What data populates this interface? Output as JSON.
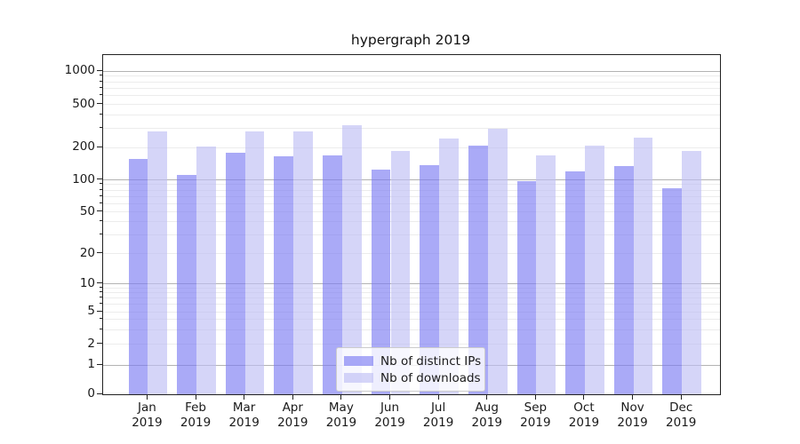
{
  "title": "hypergraph 2019",
  "chart_data": {
    "type": "bar",
    "categories": [
      "Jan",
      "Feb",
      "Mar",
      "Apr",
      "May",
      "Jun",
      "Jul",
      "Aug",
      "Sep",
      "Oct",
      "Nov",
      "Dec"
    ],
    "year": "2019",
    "series": [
      {
        "name": "Nb of distinct IPs",
        "color": "#7d7df2",
        "values": [
          155,
          110,
          180,
          164,
          170,
          125,
          138,
          208,
          97,
          120,
          135,
          84
        ]
      },
      {
        "name": "Nb of downloads",
        "color": "#bebef4",
        "values": [
          280,
          205,
          280,
          280,
          320,
          186,
          243,
          300,
          168,
          207,
          245,
          185
        ]
      }
    ],
    "bar_alpha": 0.65,
    "yscale": "symlog",
    "y_ticks": [
      0,
      1,
      2,
      5,
      10,
      20,
      50,
      100,
      200,
      500,
      1000
    ],
    "ylim": [
      0,
      1400
    ],
    "grid": true,
    "legend_position": "lower-center"
  },
  "colors": {
    "major_grid": "#b3b3b3",
    "minor_grid": "#ececec",
    "spine": "#222222",
    "text": "#1a1a1a"
  }
}
